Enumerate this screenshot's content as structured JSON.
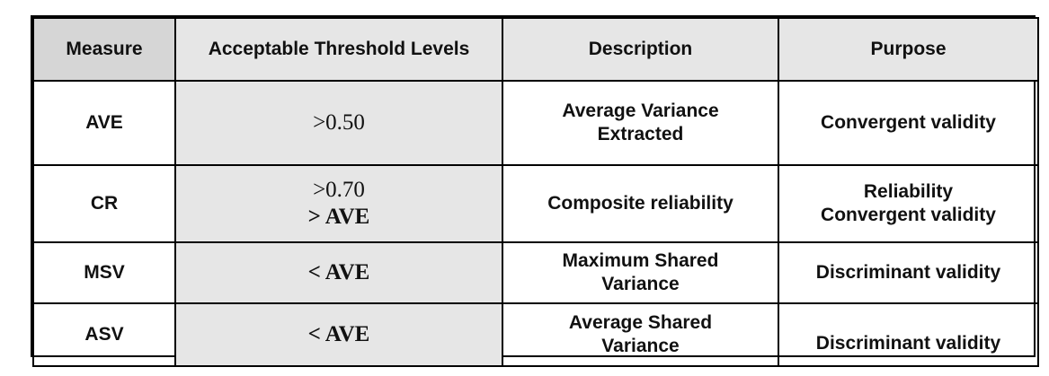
{
  "headers": {
    "measure": "Measure",
    "threshold": "Acceptable Threshold Levels",
    "description": "Description",
    "purpose": "Purpose"
  },
  "rows": [
    {
      "measure": "AVE",
      "threshold": [
        ">0.50"
      ],
      "description": [
        "Average Variance",
        "Extracted"
      ],
      "purpose": [
        "Convergent validity"
      ]
    },
    {
      "measure": "CR",
      "threshold": [
        ">0.70",
        "> AVE"
      ],
      "description": [
        "Composite reliability"
      ],
      "purpose": [
        "Reliability",
        "Convergent validity"
      ]
    },
    {
      "measure": "MSV",
      "threshold": [
        "< AVE"
      ],
      "description": [
        "Maximum Shared",
        "Variance"
      ],
      "purpose": [
        "Discriminant validity"
      ]
    },
    {
      "measure": "ASV",
      "threshold": [
        "< AVE"
      ],
      "description": [
        "Average Shared",
        "Variance"
      ],
      "purpose": [
        "Discriminant validity"
      ]
    }
  ]
}
